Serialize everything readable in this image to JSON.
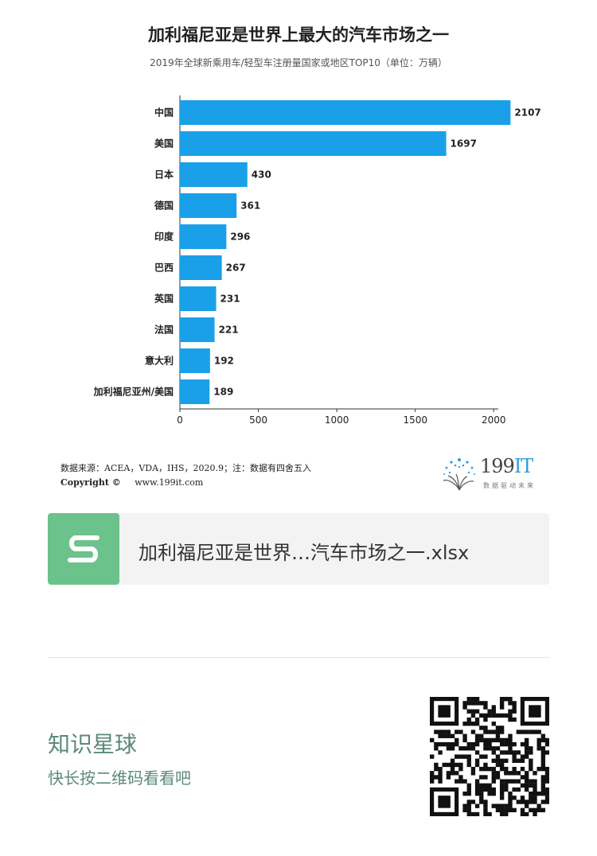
{
  "chart_data": {
    "type": "bar",
    "orientation": "horizontal",
    "title": "加利福尼亚是世界上最大的汽车市场之一",
    "subtitle": "2019年全球新乘用车/轻型车注册量国家或地区TOP10（单位：万辆）",
    "categories": [
      "中国",
      "美国",
      "日本",
      "德国",
      "印度",
      "巴西",
      "英国",
      "法国",
      "意大利",
      "加利福尼亚州/美国"
    ],
    "values": [
      2107,
      1697,
      430,
      361,
      296,
      267,
      231,
      221,
      192,
      189
    ],
    "xlim": [
      0,
      2100
    ],
    "xticks": [
      0,
      500,
      1000,
      1500,
      2000
    ],
    "bar_color": "#1aa0e8",
    "grid": false,
    "legend": "none"
  },
  "footer": {
    "source_text": "数据来源：ACEA，VDA，IHS，2020.9；注：数据有四舍五入",
    "copyright_label": "Copyright ©",
    "website": "www.199it.com",
    "logo_number": "199",
    "logo_suffix": "IT",
    "logo_tagline": "数据驱动未来"
  },
  "file_card": {
    "icon": "spreadsheet-s-icon",
    "icon_color": "#6cc28b",
    "file_name": "加利福尼亚是世界…汽车市场之一.xlsx"
  },
  "promo": {
    "title": "知识星球",
    "subtitle": "快长按二维码看看吧",
    "text_color": "#5b8a7a"
  }
}
